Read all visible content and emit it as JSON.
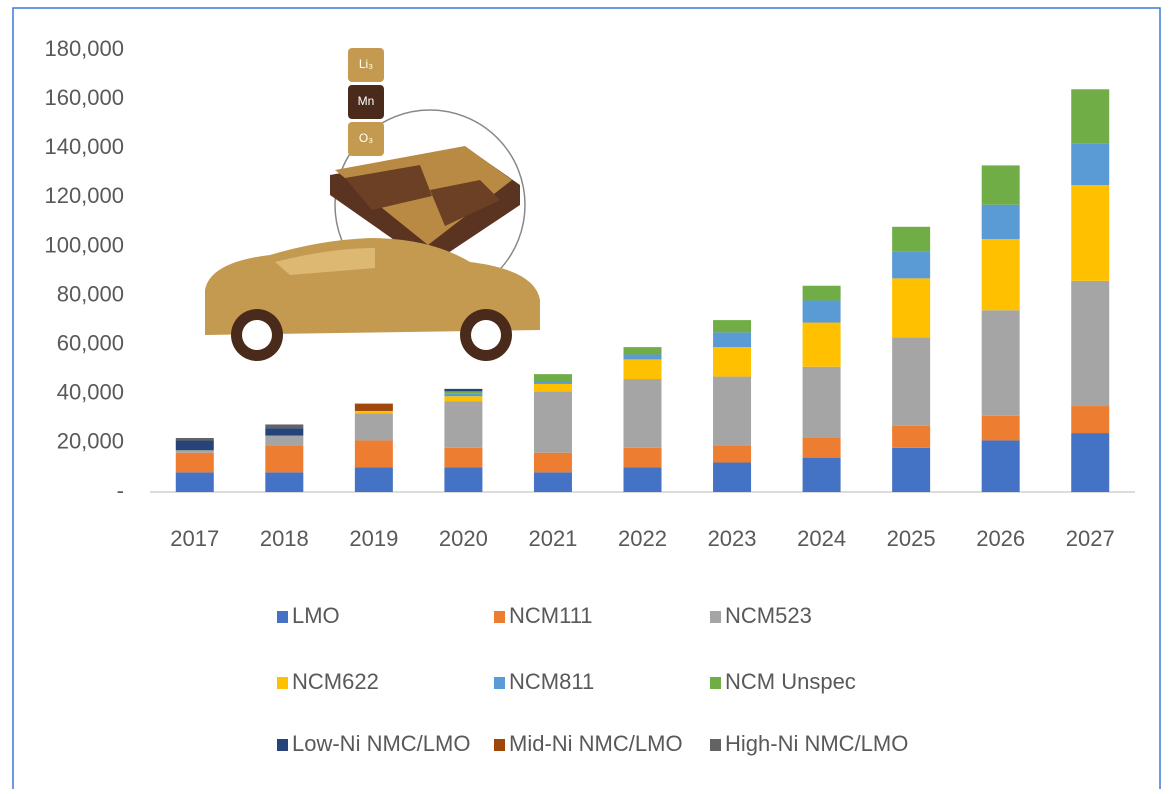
{
  "chart_data": {
    "type": "stacked_bar",
    "categories": [
      "2017",
      "2018",
      "2019",
      "2020",
      "2021",
      "2022",
      "2023",
      "2024",
      "2025",
      "2026",
      "2027"
    ],
    "series": [
      {
        "name": "LMO",
        "color": "#4472c4",
        "values": [
          8000,
          8000,
          10000,
          10000,
          8000,
          10000,
          12000,
          14000,
          18000,
          21000,
          24000
        ]
      },
      {
        "name": "NCM111",
        "color": "#ed7d31",
        "values": [
          8000,
          11000,
          11000,
          8000,
          8000,
          8000,
          7000,
          8000,
          9000,
          10000,
          11000
        ]
      },
      {
        "name": "NCM523",
        "color": "#a5a5a5",
        "values": [
          1000,
          4000,
          11000,
          19000,
          25000,
          28000,
          28000,
          29000,
          36000,
          43000,
          51000
        ]
      },
      {
        "name": "NCM622",
        "color": "#ffc000",
        "values": [
          0,
          0,
          1000,
          2000,
          3000,
          8000,
          12000,
          18000,
          24000,
          29000,
          39000
        ]
      },
      {
        "name": "NCM811",
        "color": "#5b9bd5",
        "values": [
          0,
          0,
          0,
          1000,
          1000,
          2000,
          6000,
          9000,
          11000,
          14000,
          17000
        ]
      },
      {
        "name": "NCM Unspec",
        "color": "#70ad47",
        "values": [
          0,
          0,
          0,
          1000,
          3000,
          3000,
          5000,
          6000,
          10000,
          16000,
          22000
        ]
      },
      {
        "name": "Low-Ni NMC/LMO",
        "color": "#264478",
        "values": [
          4000,
          3000,
          0,
          1000,
          0,
          0,
          0,
          0,
          0,
          0,
          0
        ]
      },
      {
        "name": "Mid-Ni NMC/LMO",
        "color": "#9e480e",
        "values": [
          0,
          0,
          3000,
          0,
          0,
          0,
          0,
          0,
          0,
          0,
          0
        ]
      },
      {
        "name": "High-Ni NMC/LMO",
        "color": "#636363",
        "values": [
          1000,
          1500,
          0,
          0,
          0,
          0,
          0,
          0,
          0,
          0,
          0
        ]
      }
    ],
    "ylim": [
      0,
      180000
    ],
    "yticks": [
      {
        "value": 0,
        "label": "-"
      },
      {
        "value": 20000,
        "label": "20,000"
      },
      {
        "value": 40000,
        "label": "40,000"
      },
      {
        "value": 60000,
        "label": "60,000"
      },
      {
        "value": 80000,
        "label": "80,000"
      },
      {
        "value": 100000,
        "label": "100,000"
      },
      {
        "value": 120000,
        "label": "120,000"
      },
      {
        "value": 140000,
        "label": "140,000"
      },
      {
        "value": 160000,
        "label": "160,000"
      },
      {
        "value": 180000,
        "label": "180,000"
      }
    ],
    "grid": false
  },
  "illustration": {
    "labels": [
      "Li₃",
      "Mn",
      "O₃"
    ]
  }
}
